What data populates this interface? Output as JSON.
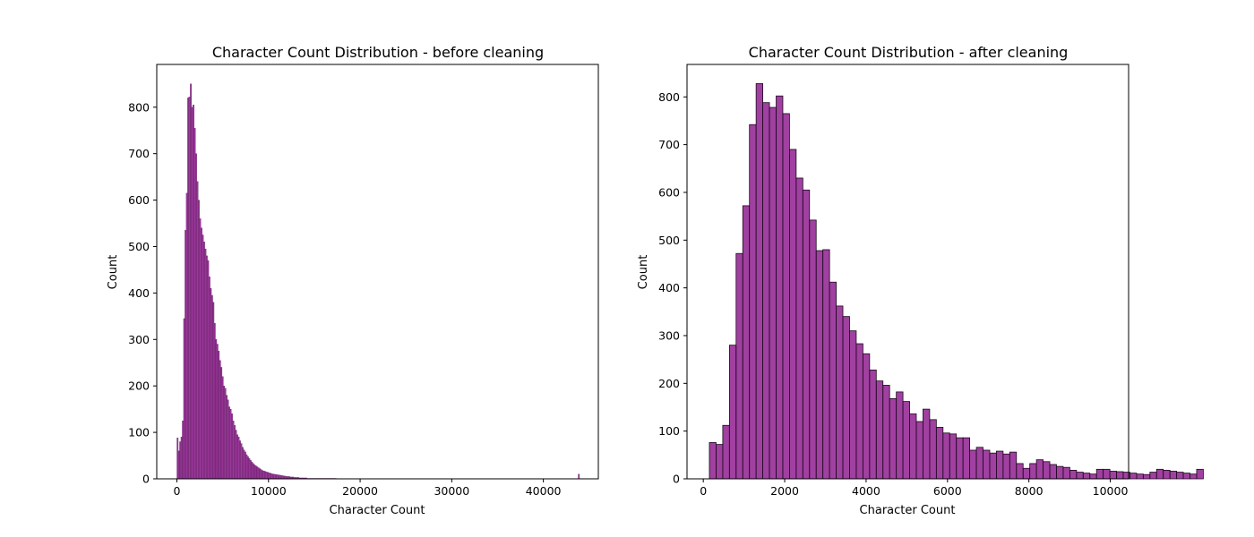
{
  "chart_data": [
    {
      "type": "bar",
      "title": "Character Count Distribution - before cleaning",
      "xlabel": "Character Count",
      "ylabel": "Count",
      "xlim": [
        -2200,
        46000
      ],
      "ylim": [
        0,
        892
      ],
      "xticks": [
        0,
        10000,
        20000,
        30000,
        40000
      ],
      "xtick_labels": [
        "0",
        "10000",
        "20000",
        "30000",
        "40000"
      ],
      "yticks": [
        0,
        100,
        200,
        300,
        400,
        500,
        600,
        700,
        800
      ],
      "ytick_labels": [
        "0",
        "100",
        "200",
        "300",
        "400",
        "500",
        "600",
        "700",
        "800"
      ],
      "bin_start": 0,
      "bin_width": 145,
      "values": [
        88,
        60,
        80,
        90,
        125,
        345,
        535,
        615,
        820,
        822,
        850,
        800,
        805,
        755,
        700,
        640,
        600,
        560,
        540,
        525,
        510,
        495,
        480,
        470,
        435,
        410,
        395,
        380,
        335,
        300,
        290,
        275,
        255,
        240,
        220,
        200,
        195,
        180,
        170,
        155,
        150,
        140,
        125,
        115,
        105,
        95,
        90,
        82,
        76,
        68,
        62,
        58,
        52,
        48,
        44,
        40,
        36,
        33,
        30,
        28,
        26,
        24,
        22,
        20,
        18,
        17,
        16,
        15,
        14,
        13,
        12,
        11,
        10,
        10,
        9,
        9,
        8,
        8,
        7,
        7,
        6,
        6,
        5,
        5,
        5,
        4,
        4,
        4,
        3,
        3,
        3,
        3,
        2,
        2,
        2,
        2,
        2,
        2,
        1,
        1,
        1,
        1,
        1,
        1,
        1,
        1,
        1,
        1,
        1,
        1,
        1,
        1,
        1,
        1,
        1,
        1,
        1,
        1,
        1,
        1
      ],
      "outlier_bins": [
        {
          "x": 43800,
          "count": 10
        }
      ],
      "color": "#800080"
    },
    {
      "type": "bar",
      "title": "Character Count Distribution - after cleaning",
      "xlabel": "Character Count",
      "ylabel": "Count",
      "xlim": [
        -400,
        10450
      ],
      "ylim": [
        0,
        868
      ],
      "xticks": [
        0,
        2000,
        4000,
        6000,
        8000,
        10000
      ],
      "xtick_labels": [
        "0",
        "2000",
        "4000",
        "6000",
        "8000",
        "10000"
      ],
      "yticks": [
        0,
        100,
        200,
        300,
        400,
        500,
        600,
        700,
        800
      ],
      "ytick_labels": [
        "0",
        "100",
        "200",
        "300",
        "400",
        "500",
        "600",
        "700",
        "800"
      ],
      "bin_start": 150,
      "bin_width": 164,
      "values": [
        76,
        72,
        112,
        280,
        472,
        572,
        742,
        828,
        788,
        778,
        802,
        765,
        690,
        630,
        605,
        542,
        478,
        480,
        412,
        362,
        340,
        310,
        283,
        262,
        228,
        205,
        196,
        168,
        182,
        162,
        136,
        120,
        146,
        124,
        108,
        96,
        94,
        86,
        86,
        60,
        66,
        60,
        54,
        58,
        52,
        56,
        32,
        22,
        32,
        40,
        36,
        30,
        26,
        24,
        18,
        14,
        12,
        10,
        20,
        20,
        16,
        15,
        14,
        12,
        10,
        9,
        14,
        20,
        18,
        16,
        14,
        12,
        10,
        20
      ],
      "color": "#800080"
    }
  ]
}
